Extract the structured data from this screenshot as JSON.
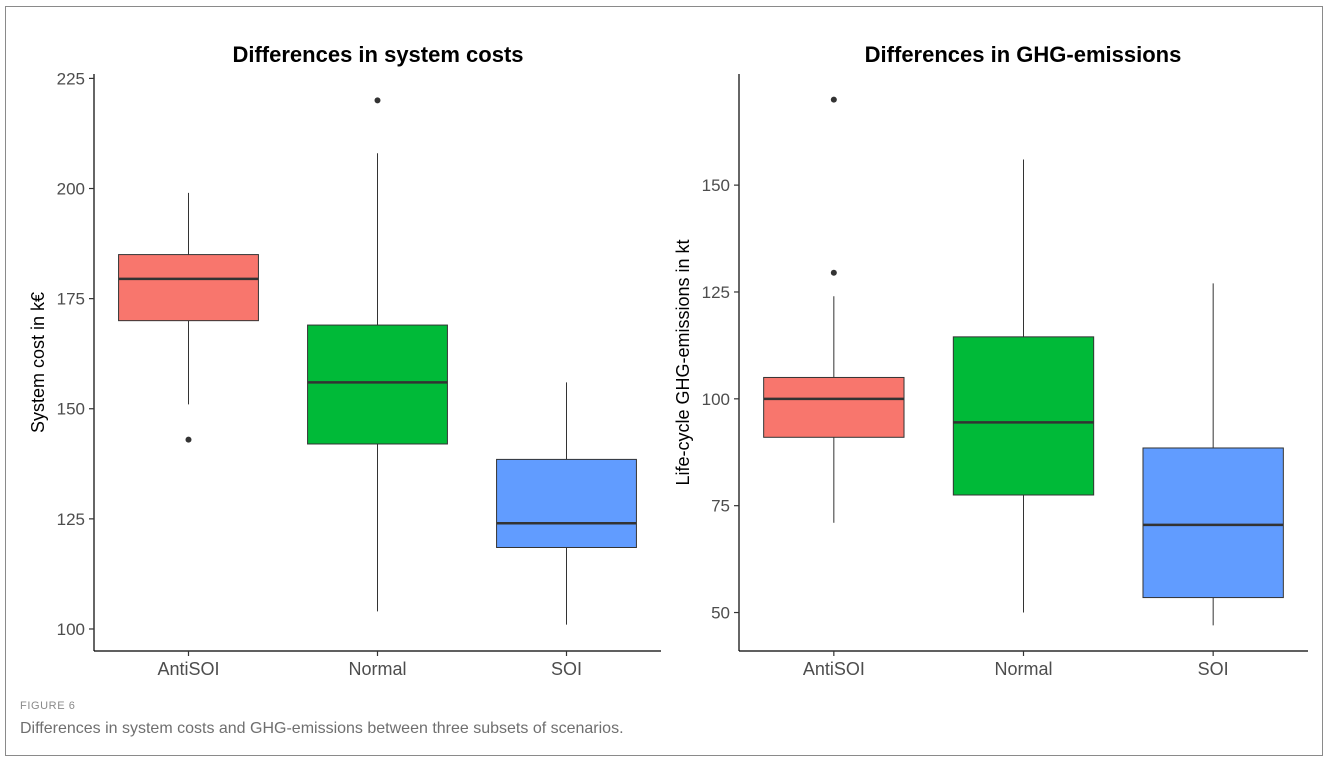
{
  "figure": {
    "label": "FIGURE 6",
    "caption": "Differences in system costs and GHG-emissions between three subsets of scenarios."
  },
  "chart_data": [
    {
      "type": "box",
      "title": "Differences in system costs",
      "xlabel": "",
      "ylabel": "System cost in k€",
      "ylim": [
        95,
        226
      ],
      "yticks": [
        100,
        125,
        150,
        175,
        200,
        225
      ],
      "grid": false,
      "categories": [
        "AntiSOI",
        "Normal",
        "SOI"
      ],
      "colors": [
        "#F8766D",
        "#00BA38",
        "#619CFF"
      ],
      "boxes": [
        {
          "category": "AntiSOI",
          "whisker_low": 151,
          "q1": 170,
          "median": 179.5,
          "q3": 185,
          "whisker_high": 199,
          "outliers": [
            143
          ]
        },
        {
          "category": "Normal",
          "whisker_low": 104,
          "q1": 142,
          "median": 156,
          "q3": 169,
          "whisker_high": 208,
          "outliers": [
            220
          ]
        },
        {
          "category": "SOI",
          "whisker_low": 101,
          "q1": 118.5,
          "median": 124,
          "q3": 138.5,
          "whisker_high": 156,
          "outliers": []
        }
      ]
    },
    {
      "type": "box",
      "title": "Differences in GHG-emissions",
      "xlabel": "",
      "ylabel": "Life-cycle GHG-emissions in kt",
      "ylim": [
        41,
        176
      ],
      "yticks": [
        50,
        75,
        100,
        125,
        150
      ],
      "grid": false,
      "categories": [
        "AntiSOI",
        "Normal",
        "SOI"
      ],
      "colors": [
        "#F8766D",
        "#00BA38",
        "#619CFF"
      ],
      "boxes": [
        {
          "category": "AntiSOI",
          "whisker_low": 71,
          "q1": 91,
          "median": 100,
          "q3": 105,
          "whisker_high": 124,
          "outliers": [
            129.5,
            170
          ]
        },
        {
          "category": "Normal",
          "whisker_low": 50,
          "q1": 77.5,
          "median": 94.5,
          "q3": 114.5,
          "whisker_high": 156,
          "outliers": []
        },
        {
          "category": "SOI",
          "whisker_low": 47,
          "q1": 53.5,
          "median": 70.5,
          "q3": 88.5,
          "whisker_high": 127,
          "outliers": []
        }
      ]
    }
  ]
}
